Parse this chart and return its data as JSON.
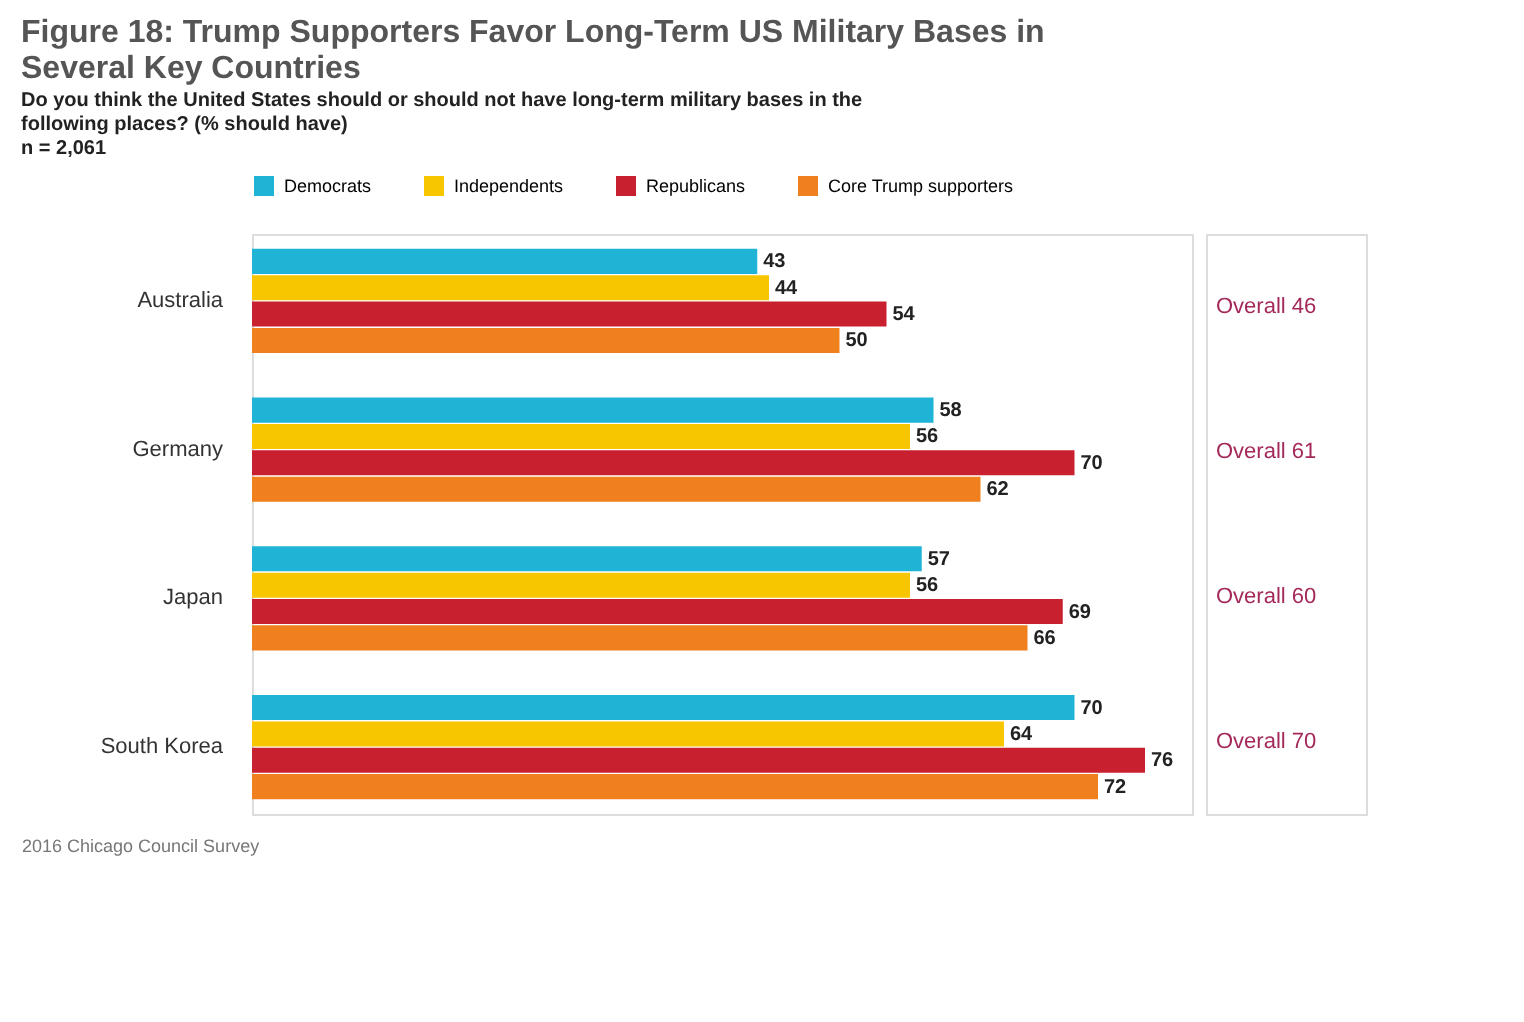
{
  "chart_data": {
    "type": "bar",
    "orientation": "horizontal",
    "title": "Figure 18: Trump Supporters Favor Long-Term US Military Bases in Several Key Countries",
    "subtitle": "Do you think the United States should or should not have long-term military bases in the following places? (% should have)",
    "categories": [
      "Australia",
      "Germany",
      "Japan",
      "South Korea"
    ],
    "series": [
      {
        "name": "Democrats",
        "color": "#1fb3d6",
        "values": [
          43,
          58,
          57,
          70
        ]
      },
      {
        "name": "Independents",
        "color": "#f7c600",
        "values": [
          44,
          56,
          56,
          64
        ]
      },
      {
        "name": "Republicans",
        "color": "#c8202f",
        "values": [
          54,
          70,
          69,
          76
        ]
      },
      {
        "name": "Core Trump supporters",
        "color": "#f07f1e",
        "values": [
          50,
          62,
          66,
          72
        ]
      }
    ],
    "data_labels": true,
    "legend": "top left",
    "grid": false,
    "annotations": [
      "n = 2,061",
      "Overall 46",
      "Overall 61",
      "Overall 60",
      "Overall 70",
      "2016 Chicago Council Survey"
    ]
  }
}
